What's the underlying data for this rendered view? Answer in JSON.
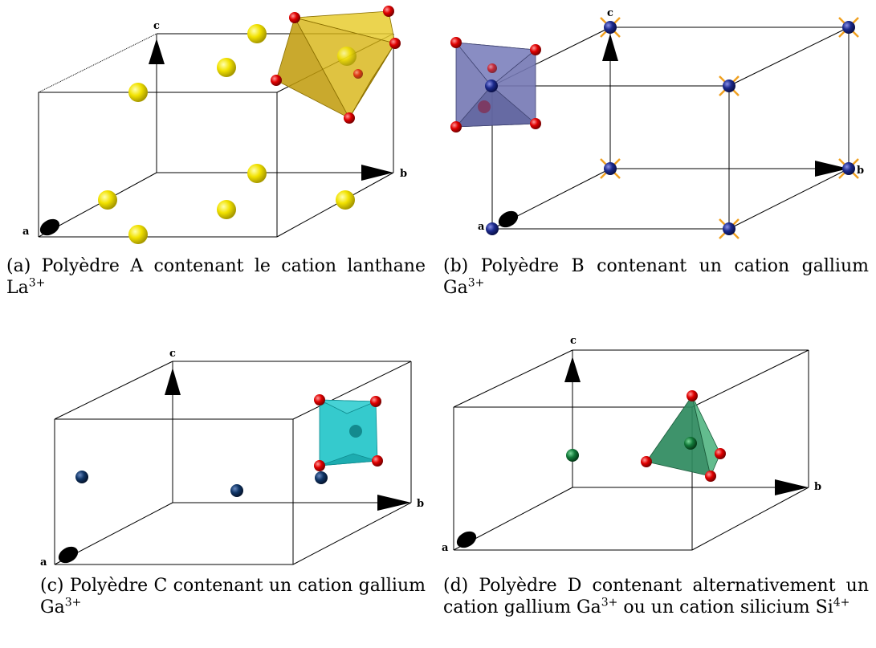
{
  "colors": {
    "lanthanum": "#f2e200",
    "oxygen": "#e00000",
    "gallium_b": "#1c2a8c",
    "gallium_c": "#0f3566",
    "silicon_gallium_d": "#127a3a",
    "polyhedron_a": "#d4b20c",
    "polyhedron_b": "#6a6ea8",
    "polyhedron_c": "#1fc4c8",
    "polyhedron_d": "#2e8a5e",
    "bonds_b": "#f0a020"
  },
  "panels": [
    {
      "axes": {
        "a": "a",
        "b": "b",
        "c": "c"
      },
      "caption": {
        "text": "(a) Polyèdre A contenant le cation lanthane La",
        "sup": "3+"
      }
    },
    {
      "axes": {
        "a": "a",
        "b": "b",
        "c": "c"
      },
      "caption": {
        "text": "(b) Polyèdre B contenant un cation gallium Ga",
        "sup": "3+"
      }
    },
    {
      "axes": {
        "a": "a",
        "b": "b",
        "c": "c"
      },
      "caption": {
        "text": "(c) Polyèdre C contenant un cation gallium Ga",
        "sup": "3+"
      }
    },
    {
      "axes": {
        "a": "a",
        "b": "b",
        "c": "c"
      },
      "caption": {
        "text": "(d) Polyèdre D contenant alternativement un cation gallium Ga",
        "sup": "3+",
        "text2": " ou un cation silicium Si",
        "sup2": "4+"
      }
    }
  ]
}
